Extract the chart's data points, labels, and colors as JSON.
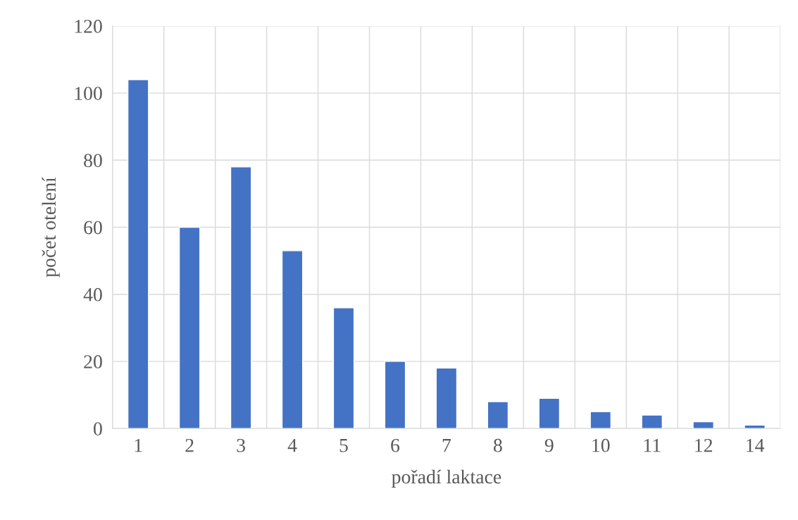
{
  "chart_data": {
    "type": "bar",
    "xlabel": "pořadí laktace",
    "ylabel": "počet otelení",
    "categories": [
      "1",
      "2",
      "3",
      "4",
      "5",
      "6",
      "7",
      "8",
      "9",
      "10",
      "11",
      "12",
      "14"
    ],
    "values": [
      104,
      60,
      78,
      53,
      36,
      20,
      18,
      8,
      9,
      5,
      4,
      2,
      1
    ],
    "color": "#4472c4",
    "ylim": [
      0,
      120
    ],
    "yticks": [
      0,
      20,
      40,
      60,
      80,
      100,
      120
    ],
    "grid": true
  }
}
